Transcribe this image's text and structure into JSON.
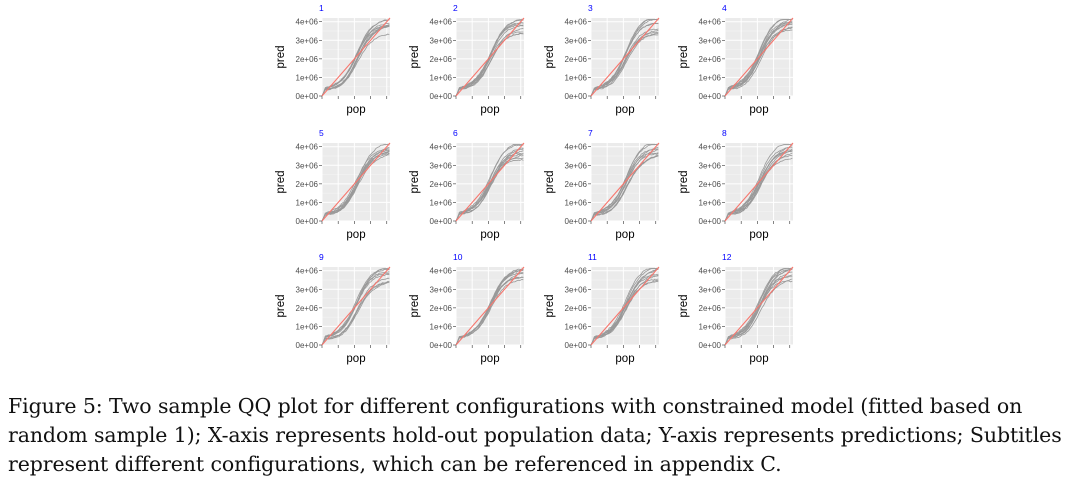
{
  "chart_data": {
    "type": "line",
    "panels": [
      {
        "subtitle": "1"
      },
      {
        "subtitle": "2"
      },
      {
        "subtitle": "3"
      },
      {
        "subtitle": "4"
      },
      {
        "subtitle": "5"
      },
      {
        "subtitle": "6"
      },
      {
        "subtitle": "7"
      },
      {
        "subtitle": "8"
      },
      {
        "subtitle": "9"
      },
      {
        "subtitle": "10"
      },
      {
        "subtitle": "11"
      },
      {
        "subtitle": "12"
      }
    ],
    "xlabel": "pop",
    "ylabel": "pred",
    "y_ticks": [
      "0e+00",
      "1e+06",
      "2e+06",
      "3e+06",
      "4e+06"
    ],
    "y_tick_values": [
      0,
      1000000,
      2000000,
      3000000,
      4000000
    ],
    "ylim": [
      0,
      4200000
    ],
    "xlim": [
      0,
      4200000
    ],
    "reference_line": {
      "slope": 1,
      "intercept": 0,
      "color": "#f8766d"
    },
    "qq_curves_per_panel": 10,
    "qq_curve_color": "#999999",
    "panel_background": "#ebebeb",
    "grid": true,
    "legend": "none"
  },
  "caption": "Figure 5: Two sample QQ plot for different configurations with constrained model (fitted based on random sample 1); X-axis represents hold-out population data; Y-axis represents predictions; Subtitles represent different configurations, which can be referenced in appendix C."
}
